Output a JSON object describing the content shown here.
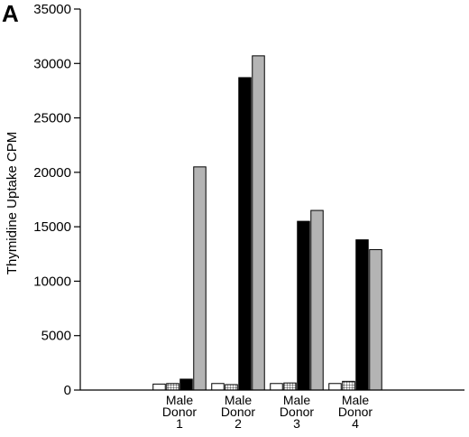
{
  "chart_data": {
    "type": "bar",
    "panel_label": "A",
    "ylabel": "Thymidine Uptake CPM",
    "xlabel": "",
    "ylim": [
      0,
      35000
    ],
    "yticks": [
      0,
      5000,
      10000,
      15000,
      20000,
      25000,
      30000,
      35000
    ],
    "yticks_text": [
      "0",
      "5000",
      "10000",
      "15000",
      "20000",
      "25000",
      "30000",
      "35000"
    ],
    "categories": [
      [
        "Male",
        "Donor",
        "1"
      ],
      [
        "Male",
        "Donor",
        "2"
      ],
      [
        "Male",
        "Donor",
        "3"
      ],
      [
        "Male",
        "Donor",
        "4"
      ]
    ],
    "series": [
      {
        "fill": "#ffffff",
        "pattern": "none",
        "values": [
          550,
          600,
          600,
          600
        ]
      },
      {
        "fill": "#ffffff",
        "pattern": "grid",
        "values": [
          600,
          500,
          650,
          800
        ]
      },
      {
        "fill": "#000000",
        "pattern": "none",
        "values": [
          1000,
          28700,
          15500,
          13800
        ]
      },
      {
        "fill": "#b4b4b4",
        "pattern": "none",
        "values": [
          20500,
          30700,
          16500,
          12900
        ]
      }
    ],
    "grid": false,
    "legend": "none"
  }
}
